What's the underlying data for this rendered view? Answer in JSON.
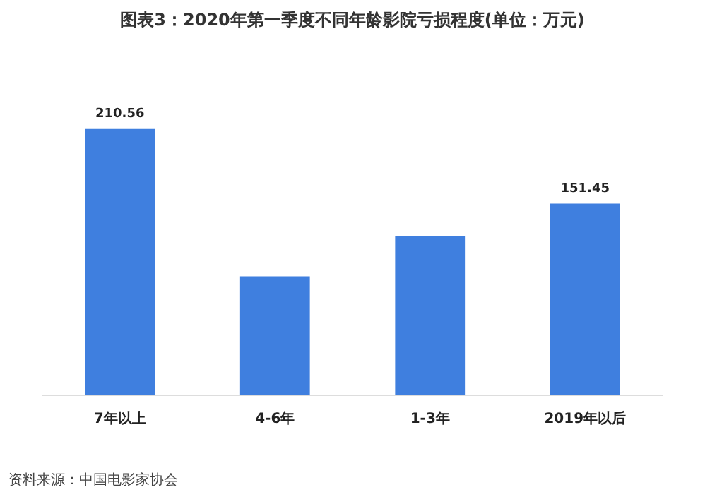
{
  "chart_data": {
    "type": "bar",
    "title": "图表3：2020年第一季度不同年龄影院亏损程度(单位：万元)",
    "categories": [
      "7年以上",
      "4-6年",
      "1-3年",
      "2019年以后"
    ],
    "values": [
      210.56,
      94,
      126,
      151.45
    ],
    "value_labels": [
      "210.56",
      null,
      null,
      "151.45"
    ],
    "color": "#3f7fdf",
    "annotations": [
      "资料来源：中国电影家协会"
    ]
  }
}
